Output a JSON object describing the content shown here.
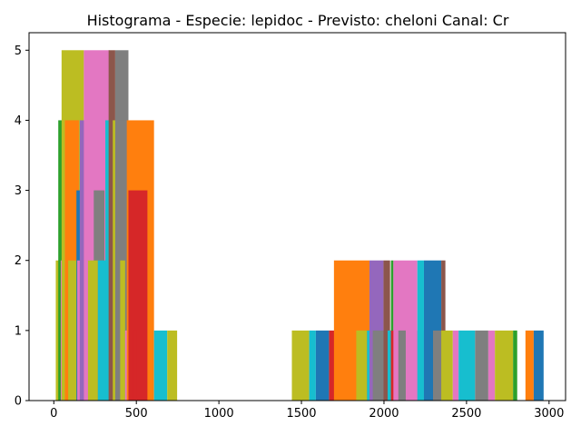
{
  "chart_data": {
    "type": "bar",
    "title": "Histograma - Especie: lepidoc - Previsto: cheloni Canal: Cr",
    "xlabel": "",
    "ylabel": "",
    "xlim": [
      -150,
      3100
    ],
    "ylim": [
      0,
      5.25
    ],
    "xticks": [
      0,
      500,
      1000,
      1500,
      2000,
      2500,
      3000
    ],
    "xtick_labels": [
      "0",
      "500",
      "1000",
      "1500",
      "2000",
      "2500",
      "3000"
    ],
    "yticks": [
      0,
      1,
      2,
      3,
      4,
      5
    ],
    "ytick_labels": [
      "0",
      "1",
      "2",
      "3",
      "4",
      "5"
    ],
    "grid": false,
    "legend": "none",
    "bars": [
      {
        "x0": 12,
        "x1": 42,
        "value": 2,
        "color": "#bcbd22"
      },
      {
        "x0": 27,
        "x1": 52,
        "value": 4,
        "color": "#2ca02c"
      },
      {
        "x0": 42,
        "x1": 87,
        "value": 2,
        "color": "#e377c2"
      },
      {
        "x0": 52,
        "x1": 97,
        "value": 3,
        "color": "#17becf"
      },
      {
        "x0": 47,
        "x1": 182,
        "value": 5,
        "color": "#bcbd22"
      },
      {
        "x0": 67,
        "x1": 152,
        "value": 4,
        "color": "#ff7f0e"
      },
      {
        "x0": 87,
        "x1": 142,
        "value": 2,
        "color": "#bcbd22"
      },
      {
        "x0": 137,
        "x1": 172,
        "value": 3,
        "color": "#1f77b4"
      },
      {
        "x0": 142,
        "x1": 222,
        "value": 2,
        "color": "#e377c2"
      },
      {
        "x0": 157,
        "x1": 207,
        "value": 4,
        "color": "#9467bd"
      },
      {
        "x0": 182,
        "x1": 337,
        "value": 5,
        "color": "#e377c2"
      },
      {
        "x0": 242,
        "x1": 307,
        "value": 3,
        "color": "#7f7f7f"
      },
      {
        "x0": 207,
        "x1": 267,
        "value": 2,
        "color": "#bcbd22"
      },
      {
        "x0": 267,
        "x1": 352,
        "value": 2,
        "color": "#17becf"
      },
      {
        "x0": 312,
        "x1": 362,
        "value": 4,
        "color": "#17becf"
      },
      {
        "x0": 332,
        "x1": 372,
        "value": 5,
        "color": "#8c564b"
      },
      {
        "x0": 357,
        "x1": 392,
        "value": 4,
        "color": "#bcbd22"
      },
      {
        "x0": 372,
        "x1": 452,
        "value": 5,
        "color": "#7f7f7f"
      },
      {
        "x0": 392,
        "x1": 442,
        "value": 4,
        "color": "#7f7f7f"
      },
      {
        "x0": 402,
        "x1": 432,
        "value": 2,
        "color": "#bcbd22"
      },
      {
        "x0": 432,
        "x1": 497,
        "value": 1,
        "color": "#e377c2"
      },
      {
        "x0": 442,
        "x1": 607,
        "value": 4,
        "color": "#ff7f0e"
      },
      {
        "x0": 452,
        "x1": 567,
        "value": 3,
        "color": "#d62728"
      },
      {
        "x0": 482,
        "x1": 502,
        "value": 1,
        "color": "#d62728"
      },
      {
        "x0": 607,
        "x1": 687,
        "value": 1,
        "color": "#17becf"
      },
      {
        "x0": 687,
        "x1": 747,
        "value": 1,
        "color": "#bcbd22"
      },
      {
        "x0": 1442,
        "x1": 1547,
        "value": 1,
        "color": "#bcbd22"
      },
      {
        "x0": 1547,
        "x1": 1587,
        "value": 1,
        "color": "#17becf"
      },
      {
        "x0": 1587,
        "x1": 1667,
        "value": 1,
        "color": "#1f77b4"
      },
      {
        "x0": 1667,
        "x1": 1832,
        "value": 1,
        "color": "#d62728"
      },
      {
        "x0": 1697,
        "x1": 1912,
        "value": 2,
        "color": "#ff7f0e"
      },
      {
        "x0": 1832,
        "x1": 1897,
        "value": 1,
        "color": "#bcbd22"
      },
      {
        "x0": 1897,
        "x1": 1932,
        "value": 1,
        "color": "#17becf"
      },
      {
        "x0": 1912,
        "x1": 1997,
        "value": 2,
        "color": "#9467bd"
      },
      {
        "x0": 1932,
        "x1": 1997,
        "value": 1,
        "color": "#7f7f7f"
      },
      {
        "x0": 1997,
        "x1": 2037,
        "value": 2,
        "color": "#8c564b"
      },
      {
        "x0": 2022,
        "x1": 2042,
        "value": 1,
        "color": "#17becf"
      },
      {
        "x0": 2042,
        "x1": 2057,
        "value": 2,
        "color": "#2ca02c"
      },
      {
        "x0": 2042,
        "x1": 2087,
        "value": 1,
        "color": "#d62728"
      },
      {
        "x0": 2057,
        "x1": 2202,
        "value": 2,
        "color": "#e377c2"
      },
      {
        "x0": 2087,
        "x1": 2132,
        "value": 1,
        "color": "#7f7f7f"
      },
      {
        "x0": 2132,
        "x1": 2297,
        "value": 1,
        "color": "#e377c2"
      },
      {
        "x0": 2202,
        "x1": 2242,
        "value": 2,
        "color": "#17becf"
      },
      {
        "x0": 2242,
        "x1": 2347,
        "value": 2,
        "color": "#1f77b4"
      },
      {
        "x0": 2297,
        "x1": 2347,
        "value": 1,
        "color": "#7f7f7f"
      },
      {
        "x0": 2347,
        "x1": 2372,
        "value": 2,
        "color": "#8c564b"
      },
      {
        "x0": 2347,
        "x1": 2417,
        "value": 1,
        "color": "#bcbd22"
      },
      {
        "x0": 2417,
        "x1": 2452,
        "value": 1,
        "color": "#e377c2"
      },
      {
        "x0": 2452,
        "x1": 2552,
        "value": 1,
        "color": "#17becf"
      },
      {
        "x0": 2552,
        "x1": 2632,
        "value": 1,
        "color": "#7f7f7f"
      },
      {
        "x0": 2632,
        "x1": 2672,
        "value": 1,
        "color": "#e377c2"
      },
      {
        "x0": 2672,
        "x1": 2782,
        "value": 1,
        "color": "#bcbd22"
      },
      {
        "x0": 2782,
        "x1": 2807,
        "value": 1,
        "color": "#2ca02c"
      },
      {
        "x0": 2857,
        "x1": 2907,
        "value": 1,
        "color": "#ff7f0e"
      },
      {
        "x0": 2907,
        "x1": 2967,
        "value": 1,
        "color": "#1f77b4"
      }
    ]
  }
}
